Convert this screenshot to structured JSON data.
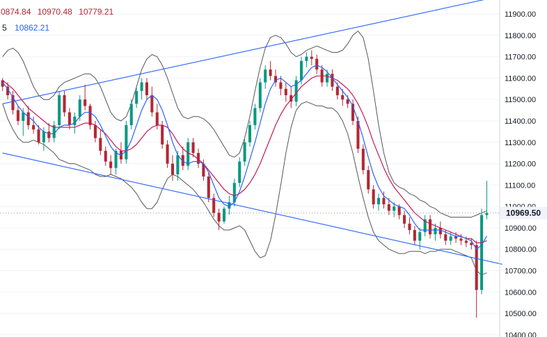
{
  "legend": {
    "ohlc_partial": "0874.84",
    "ohlc_high": "10970.48",
    "ohlc_low": "10779.21",
    "ma_period_partial": "5",
    "ma_value": "10862.21"
  },
  "colors": {
    "up": "#089981",
    "down": "#b22833",
    "ma_fast": "#2962ff",
    "ma_slow": "#c2185b",
    "bollinger": "#555555",
    "trendline": "#2962ff",
    "legend_red": "#b22833",
    "legend_blue": "#2962ff"
  },
  "chart_data": {
    "type": "candlestick",
    "y_axis": {
      "position": "right",
      "ticks": [
        "11900.00",
        "11800.00",
        "11700.00",
        "11600.00",
        "11500.00",
        "11400.00",
        "11300.00",
        "11200.00",
        "11100.00",
        "11000.00",
        "10900.00",
        "10800.00",
        "10700.00",
        "10600.00",
        "10500.00",
        "10400.00"
      ],
      "tick_values": [
        11900,
        11800,
        11700,
        11600,
        11500,
        11400,
        11300,
        11200,
        11100,
        11000,
        10900,
        10800,
        10700,
        10600,
        10500,
        10400
      ],
      "range": [
        10390,
        11965
      ]
    },
    "last_price": {
      "label": "10969.50",
      "value": 10969.5
    },
    "candles": [
      [
        11590,
        11600,
        11540,
        11560
      ],
      [
        11560,
        11580,
        11500,
        11520
      ],
      [
        11520,
        11540,
        11430,
        11450
      ],
      [
        11450,
        11470,
        11380,
        11400
      ],
      [
        11400,
        11460,
        11330,
        11440
      ],
      [
        11440,
        11470,
        11360,
        11380
      ],
      [
        11380,
        11420,
        11340,
        11360
      ],
      [
        11360,
        11380,
        11290,
        11300
      ],
      [
        11300,
        11370,
        11260,
        11350
      ],
      [
        11350,
        11390,
        11300,
        11320
      ],
      [
        11320,
        11400,
        11300,
        11380
      ],
      [
        11380,
        11540,
        11360,
        11520
      ],
      [
        11520,
        11540,
        11420,
        11440
      ],
      [
        11440,
        11460,
        11360,
        11380
      ],
      [
        11380,
        11440,
        11340,
        11420
      ],
      [
        11420,
        11520,
        11400,
        11500
      ],
      [
        11500,
        11570,
        11450,
        11470
      ],
      [
        11470,
        11480,
        11360,
        11380
      ],
      [
        11380,
        11400,
        11300,
        11320
      ],
      [
        11320,
        11360,
        11240,
        11260
      ],
      [
        11260,
        11280,
        11190,
        11210
      ],
      [
        11210,
        11240,
        11150,
        11180
      ],
      [
        11180,
        11270,
        11150,
        11260
      ],
      [
        11260,
        11300,
        11200,
        11220
      ],
      [
        11220,
        11400,
        11200,
        11380
      ],
      [
        11380,
        11500,
        11360,
        11480
      ],
      [
        11480,
        11560,
        11460,
        11540
      ],
      [
        11540,
        11600,
        11500,
        11580
      ],
      [
        11580,
        11600,
        11500,
        11520
      ],
      [
        11520,
        11560,
        11420,
        11440
      ],
      [
        11440,
        11480,
        11360,
        11380
      ],
      [
        11380,
        11400,
        11270,
        11290
      ],
      [
        11290,
        11310,
        11180,
        11200
      ],
      [
        11200,
        11240,
        11120,
        11150
      ],
      [
        11150,
        11260,
        11120,
        11240
      ],
      [
        11240,
        11280,
        11170,
        11190
      ],
      [
        11190,
        11320,
        11170,
        11300
      ],
      [
        11300,
        11320,
        11230,
        11250
      ],
      [
        11250,
        11270,
        11180,
        11200
      ],
      [
        11200,
        11220,
        11120,
        11140
      ],
      [
        11140,
        11160,
        11020,
        11040
      ],
      [
        11040,
        11060,
        10950,
        10970
      ],
      [
        10970,
        10990,
        10890,
        10930
      ],
      [
        10930,
        11000,
        10920,
        10990
      ],
      [
        10990,
        11050,
        10960,
        11020
      ],
      [
        11020,
        11130,
        11000,
        11110
      ],
      [
        11110,
        11230,
        11090,
        11210
      ],
      [
        11210,
        11320,
        11190,
        11300
      ],
      [
        11300,
        11400,
        11280,
        11380
      ],
      [
        11380,
        11480,
        11360,
        11460
      ],
      [
        11460,
        11600,
        11440,
        11580
      ],
      [
        11580,
        11660,
        11550,
        11640
      ],
      [
        11640,
        11680,
        11590,
        11610
      ],
      [
        11610,
        11640,
        11560,
        11580
      ],
      [
        11580,
        11610,
        11520,
        11550
      ],
      [
        11550,
        11580,
        11490,
        11520
      ],
      [
        11520,
        11560,
        11460,
        11490
      ],
      [
        11490,
        11610,
        11470,
        11590
      ],
      [
        11590,
        11700,
        11570,
        11680
      ],
      [
        11680,
        11720,
        11650,
        11700
      ],
      [
        11700,
        11730,
        11660,
        11690
      ],
      [
        11690,
        11710,
        11620,
        11640
      ],
      [
        11640,
        11660,
        11560,
        11580
      ],
      [
        11580,
        11640,
        11560,
        11620
      ],
      [
        11620,
        11640,
        11540,
        11560
      ],
      [
        11560,
        11580,
        11500,
        11520
      ],
      [
        11520,
        11550,
        11470,
        11500
      ],
      [
        11500,
        11520,
        11460,
        11480
      ],
      [
        11480,
        11500,
        11380,
        11400
      ],
      [
        11400,
        11420,
        11250,
        11270
      ],
      [
        11270,
        11290,
        11150,
        11170
      ],
      [
        11170,
        11190,
        11060,
        11080
      ],
      [
        11080,
        11100,
        10990,
        11010
      ],
      [
        11010,
        11060,
        10980,
        11040
      ],
      [
        11040,
        11070,
        10990,
        11010
      ],
      [
        11010,
        11040,
        10960,
        10980
      ],
      [
        10980,
        11020,
        10950,
        11000
      ],
      [
        11000,
        11010,
        10940,
        10960
      ],
      [
        10960,
        10980,
        10900,
        10920
      ],
      [
        10920,
        10950,
        10870,
        10890
      ],
      [
        10890,
        10910,
        10820,
        10840
      ],
      [
        10840,
        10900,
        10800,
        10880
      ],
      [
        10880,
        10960,
        10860,
        10940
      ],
      [
        10940,
        10960,
        10850,
        10870
      ],
      [
        10870,
        10920,
        10840,
        10900
      ],
      [
        10900,
        10930,
        10850,
        10870
      ],
      [
        10870,
        10890,
        10820,
        10840
      ],
      [
        10840,
        10880,
        10820,
        10860
      ],
      [
        10860,
        10880,
        10830,
        10850
      ],
      [
        10850,
        10870,
        10820,
        10840
      ],
      [
        10840,
        10860,
        10810,
        10830
      ],
      [
        10830,
        10850,
        10800,
        10820
      ],
      [
        10820,
        10840,
        10480,
        10610
      ],
      [
        10610,
        10990,
        10590,
        10960
      ],
      [
        10960,
        11120,
        10940,
        10970
      ]
    ],
    "ma_fast": [
      11580,
      11550,
      11510,
      11470,
      11440,
      11420,
      11400,
      11370,
      11350,
      11340,
      11340,
      11370,
      11380,
      11380,
      11390,
      11420,
      11440,
      11440,
      11420,
      11380,
      11330,
      11280,
      11250,
      11240,
      11260,
      11310,
      11380,
      11450,
      11500,
      11520,
      11500,
      11450,
      11380,
      11300,
      11240,
      11210,
      11200,
      11210,
      11210,
      11200,
      11160,
      11100,
      11040,
      11010,
      11000,
      11020,
      11070,
      11140,
      11220,
      11300,
      11390,
      11480,
      11550,
      11590,
      11600,
      11580,
      11560,
      11570,
      11590,
      11620,
      11650,
      11660,
      11650,
      11630,
      11600,
      11570,
      11540,
      11510,
      11470,
      11400,
      11320,
      11230,
      11150,
      11090,
      11050,
      11030,
      11010,
      11000,
      10990,
      10960,
      10920,
      10890,
      10890,
      10890,
      10890,
      10890,
      10880,
      10870,
      10860,
      10860,
      10850,
      10840,
      10800,
      10820,
      10862
    ],
    "ma_slow": [
      11590,
      11570,
      11550,
      11520,
      11490,
      11460,
      11440,
      11420,
      11400,
      11380,
      11370,
      11370,
      11370,
      11370,
      11370,
      11380,
      11390,
      11390,
      11380,
      11360,
      11340,
      11310,
      11280,
      11260,
      11260,
      11270,
      11290,
      11320,
      11350,
      11370,
      11380,
      11380,
      11370,
      11340,
      11300,
      11270,
      11250,
      11240,
      11220,
      11200,
      11170,
      11140,
      11110,
      11080,
      11060,
      11050,
      11060,
      11080,
      11110,
      11150,
      11200,
      11260,
      11320,
      11380,
      11430,
      11470,
      11500,
      11530,
      11560,
      11580,
      11600,
      11610,
      11610,
      11610,
      11600,
      11590,
      11570,
      11550,
      11520,
      11480,
      11430,
      11370,
      11300,
      11240,
      11180,
      11130,
      11090,
      11060,
      11030,
      11000,
      10970,
      10950,
      10930,
      10920,
      10910,
      10900,
      10890,
      10880,
      10870,
      10860,
      10850,
      10850,
      10830,
      10830,
      10840
    ],
    "bollinger_upper": [
      11700,
      11730,
      11740,
      11720,
      11680,
      11620,
      11560,
      11520,
      11500,
      11500,
      11520,
      11560,
      11580,
      11590,
      11600,
      11610,
      11620,
      11620,
      11600,
      11560,
      11500,
      11440,
      11410,
      11400,
      11420,
      11480,
      11560,
      11640,
      11690,
      11710,
      11700,
      11660,
      11600,
      11530,
      11460,
      11420,
      11410,
      11420,
      11420,
      11410,
      11390,
      11360,
      11320,
      11280,
      11240,
      11230,
      11250,
      11320,
      11420,
      11540,
      11650,
      11740,
      11790,
      11800,
      11790,
      11760,
      11720,
      11700,
      11710,
      11730,
      11740,
      11750,
      11740,
      11730,
      11720,
      11720,
      11730,
      11760,
      11800,
      11820,
      11790,
      11690,
      11540,
      11380,
      11250,
      11160,
      11110,
      11090,
      11080,
      11060,
      11050,
      11030,
      11020,
      11000,
      10990,
      10970,
      10960,
      10950,
      10950,
      10950,
      10950,
      10950,
      10960,
      10970,
      10980
    ],
    "bollinger_lower": [
      11480,
      11410,
      11360,
      11320,
      11300,
      11300,
      11310,
      11300,
      11290,
      11270,
      11250,
      11220,
      11210,
      11200,
      11200,
      11190,
      11180,
      11170,
      11150,
      11140,
      11140,
      11150,
      11140,
      11130,
      11110,
      11090,
      11060,
      11020,
      10990,
      10990,
      11020,
      11080,
      11130,
      11150,
      11140,
      11120,
      11100,
      11080,
      11050,
      11020,
      10980,
      10940,
      10910,
      10890,
      10890,
      10900,
      10910,
      10890,
      10840,
      10790,
      10760,
      10770,
      10840,
      10960,
      11100,
      11250,
      11370,
      11450,
      11480,
      11490,
      11480,
      11470,
      11470,
      11460,
      11460,
      11440,
      11400,
      11340,
      11250,
      11140,
      11040,
      10950,
      10880,
      10840,
      10820,
      10800,
      10790,
      10780,
      10780,
      10790,
      10790,
      10790,
      10780,
      10790,
      10790,
      10800,
      10800,
      10800,
      10790,
      10780,
      10770,
      10760,
      10700,
      10680,
      10690
    ],
    "trendlines": [
      {
        "from": [
          0,
          11480
        ],
        "to": [
          97,
          11985
        ]
      },
      {
        "from": [
          0,
          11250
        ],
        "to": [
          97,
          10730
        ]
      }
    ]
  }
}
